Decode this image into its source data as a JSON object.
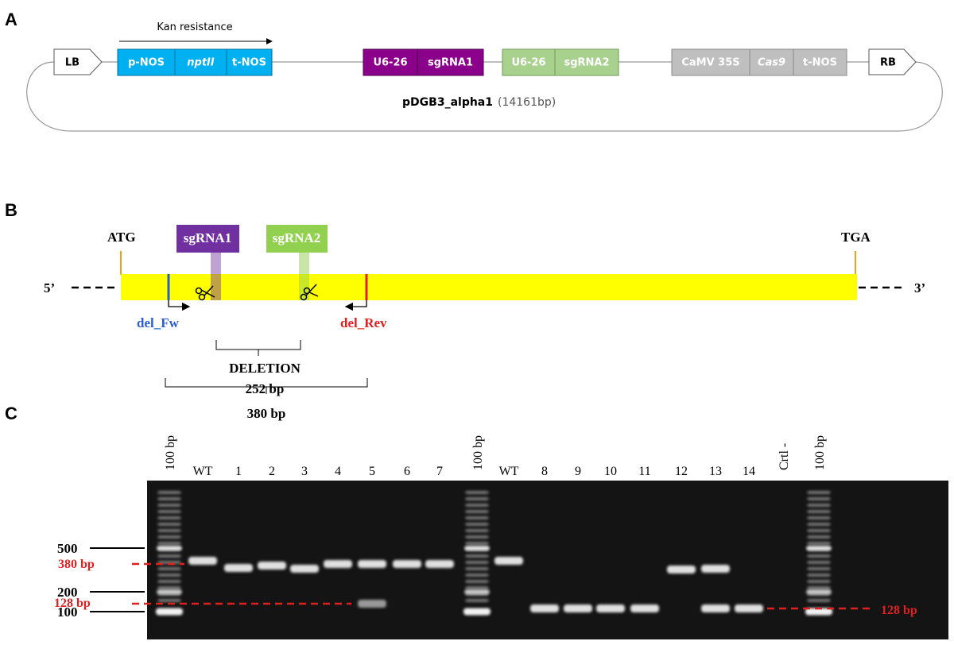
{
  "panel_a": {
    "label": "A",
    "kan_label": "Kan resistance",
    "left_border": "LB",
    "right_border": "RB",
    "cassettes": [
      {
        "parts": [
          "p-NOS",
          "nptII",
          "t-NOS"
        ]
      },
      {
        "parts": [
          "U6-26",
          "sgRNA1"
        ]
      },
      {
        "parts": [
          "U6-26",
          "sgRNA2"
        ]
      },
      {
        "parts": [
          "CaMV 35S",
          "Cas9",
          "t-NOS"
        ]
      }
    ],
    "plasmid_name": "pDGB3_alpha1",
    "plasmid_size": "(14161bp)"
  },
  "panel_b": {
    "label": "B",
    "five_prime": "5’",
    "three_prime": "3’",
    "start_codon": "ATG",
    "stop_codon": "TGA",
    "guides": [
      "sgRNA1",
      "sgRNA2"
    ],
    "primers": [
      "del_Fw",
      "del_Rev"
    ],
    "deletion_label": "DELETION",
    "deletion_size": "252 bp",
    "amplicon_size": "380 bp"
  },
  "panel_c": {
    "label": "C",
    "lanes": [
      "100 bp",
      "WT",
      "1",
      "2",
      "3",
      "4",
      "5",
      "6",
      "7",
      "100 bp",
      "WT",
      "8",
      "9",
      "10",
      "11",
      "12",
      "13",
      "14",
      "Crtl -",
      "100 bp"
    ],
    "ladder_marks": [
      "500",
      "200",
      "100"
    ],
    "band_labels": [
      "380 bp",
      "128 bp",
      "128 bp"
    ]
  }
}
